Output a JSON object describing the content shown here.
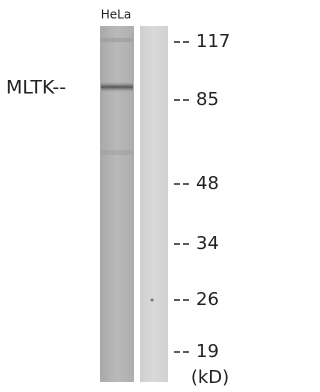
{
  "lane_label": "HeLa",
  "band_label": "MLTK--",
  "markers": [
    "117",
    "85",
    "48",
    "34",
    "26",
    "19"
  ],
  "unit": "(kD)"
}
